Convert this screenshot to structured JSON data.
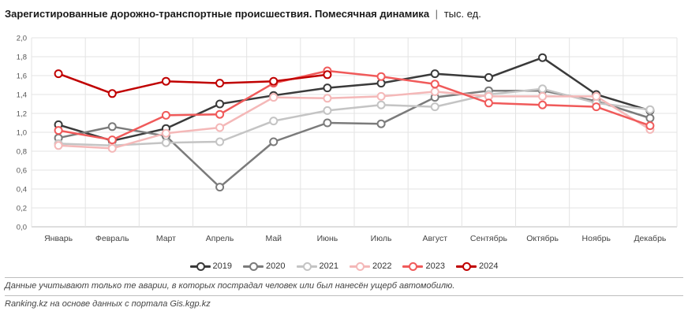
{
  "header": {
    "title": "Зарегистированные дорожно-транспортные происшествия. Помесячная динамика",
    "separator": "|",
    "unit": "тыс. ед."
  },
  "footer": {
    "note": "Данные учитывают только те аварии, в которых пострадал человек или был нанесён ущерб автомобилю.",
    "source": "Ranking.kz на основе данных с портала Gis.kgp.kz"
  },
  "chart_data": {
    "type": "line",
    "categories": [
      "Январь",
      "Февраль",
      "Март",
      "Апрель",
      "Май",
      "Июнь",
      "Июль",
      "Август",
      "Сентябрь",
      "Октябрь",
      "Ноябрь",
      "Декабрь"
    ],
    "ylim": [
      0,
      2
    ],
    "yticks": [
      "0,0",
      "0,2",
      "0,4",
      "0,6",
      "0,8",
      "1,0",
      "1,2",
      "1,4",
      "1,6",
      "1,8",
      "2,0"
    ],
    "grid": true,
    "legend_position": "bottom",
    "series": [
      {
        "name": "2019",
        "color": "#3a3a3a",
        "values": [
          1.08,
          0.91,
          1.04,
          1.3,
          1.39,
          1.47,
          1.52,
          1.62,
          1.58,
          1.79,
          1.4,
          1.23
        ]
      },
      {
        "name": "2020",
        "color": "#7b7b7b",
        "values": [
          0.94,
          1.06,
          0.96,
          0.42,
          0.9,
          1.1,
          1.09,
          1.37,
          1.44,
          1.44,
          1.33,
          1.15
        ]
      },
      {
        "name": "2021",
        "color": "#c4c4c4",
        "values": [
          0.88,
          0.86,
          0.89,
          0.9,
          1.12,
          1.23,
          1.29,
          1.27,
          1.4,
          1.46,
          1.31,
          1.24
        ]
      },
      {
        "name": "2022",
        "color": "#f4b8b8",
        "values": [
          0.86,
          0.83,
          0.99,
          1.05,
          1.37,
          1.36,
          1.38,
          1.43,
          1.38,
          1.38,
          1.38,
          1.03
        ]
      },
      {
        "name": "2023",
        "color": "#f05a5a",
        "values": [
          1.02,
          0.92,
          1.18,
          1.19,
          1.52,
          1.65,
          1.59,
          1.51,
          1.31,
          1.29,
          1.27,
          1.07
        ]
      },
      {
        "name": "2024",
        "color": "#c00000",
        "values": [
          1.62,
          1.41,
          1.54,
          1.52,
          1.54,
          1.61,
          null,
          null,
          null,
          null,
          null,
          null
        ]
      }
    ]
  }
}
